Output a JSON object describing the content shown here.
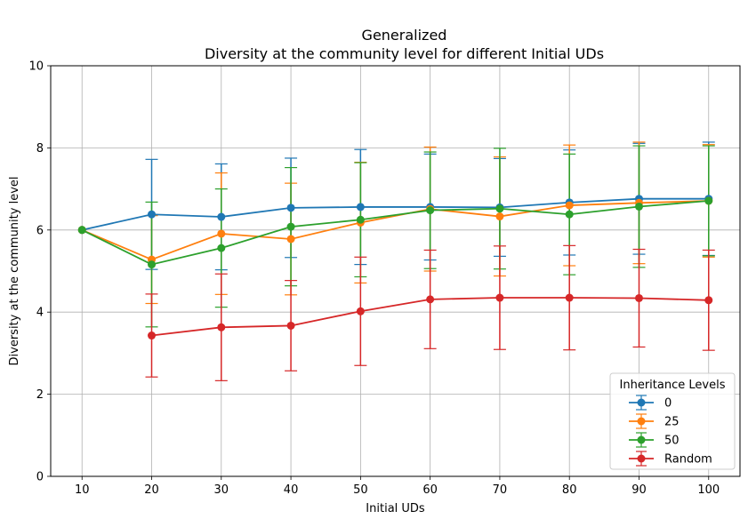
{
  "chart_data": {
    "type": "line",
    "title": "Generalized",
    "subtitle": "Diversity at the community level for different Initial UDs",
    "xlabel": "Initial UDs",
    "ylabel": "Diversity at the community level",
    "x": [
      10,
      20,
      30,
      40,
      50,
      60,
      70,
      80,
      90,
      100
    ],
    "x_ticks": [
      "10",
      "20",
      "30",
      "40",
      "50",
      "60",
      "70",
      "80",
      "90",
      "100"
    ],
    "y_ticks": [
      "0",
      "2",
      "4",
      "6",
      "8",
      "10"
    ],
    "xlim": [
      5.5,
      104.5
    ],
    "ylim": [
      0,
      10
    ],
    "grid": true,
    "error_bars": true,
    "legend": {
      "title": "Inheritance Levels",
      "placement": "lower-right"
    },
    "series": [
      {
        "name": "0",
        "color": "#1f77b4",
        "values": [
          6.0,
          6.38,
          6.32,
          6.54,
          6.56,
          6.56,
          6.55,
          6.67,
          6.76,
          6.76
        ],
        "errors": [
          0,
          1.34,
          1.29,
          1.21,
          1.4,
          1.29,
          1.19,
          1.28,
          1.35,
          1.38
        ]
      },
      {
        "name": "25",
        "color": "#ff7f0e",
        "values": [
          6.0,
          5.28,
          5.91,
          5.78,
          6.18,
          6.51,
          6.33,
          6.6,
          6.66,
          6.71
        ],
        "errors": [
          0,
          1.07,
          1.48,
          1.36,
          1.47,
          1.51,
          1.45,
          1.47,
          1.48,
          1.37
        ]
      },
      {
        "name": "50",
        "color": "#2ca02c",
        "values": [
          6.0,
          5.16,
          5.56,
          6.08,
          6.25,
          6.48,
          6.52,
          6.38,
          6.57,
          6.71
        ],
        "errors": [
          0,
          1.52,
          1.44,
          1.44,
          1.39,
          1.42,
          1.47,
          1.47,
          1.48,
          1.34
        ]
      },
      {
        "name": "Random",
        "color": "#d62728",
        "values": [
          null,
          3.43,
          3.63,
          3.67,
          4.02,
          4.31,
          4.35,
          4.35,
          4.34,
          4.29
        ],
        "errors": [
          null,
          1.01,
          1.3,
          1.1,
          1.32,
          1.2,
          1.26,
          1.27,
          1.19,
          1.22
        ]
      }
    ]
  }
}
